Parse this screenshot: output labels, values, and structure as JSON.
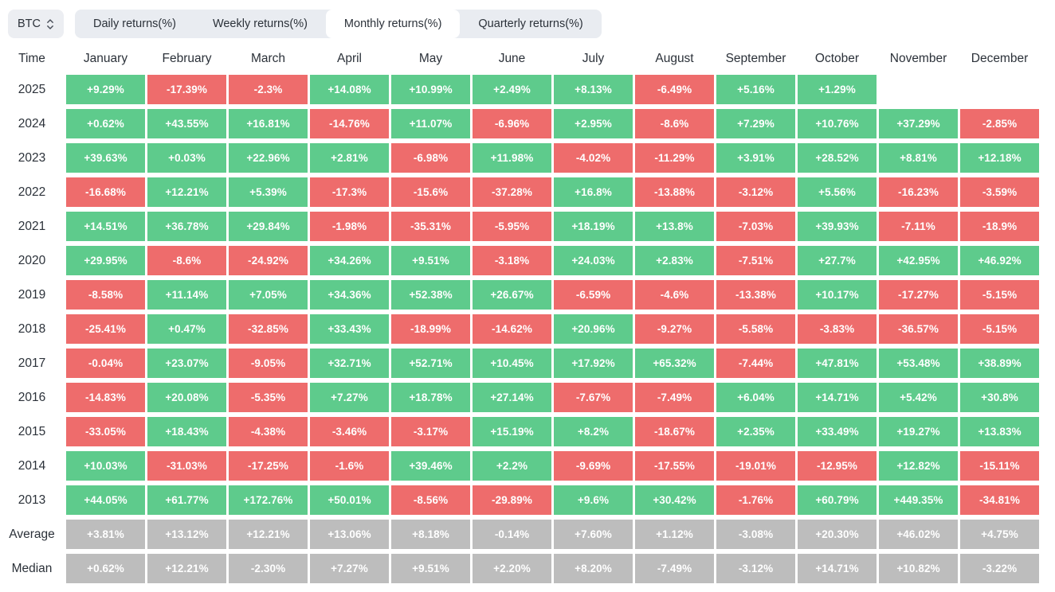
{
  "colors": {
    "positive": "#5ECB8C",
    "negative": "#EE6C6C",
    "summary": "#BDBDBD",
    "tab_bar_bg": "#E9ECF1",
    "tab_active_bg": "#FFFFFF",
    "select_bg": "#ECEEF2",
    "text_dark": "#2B3139",
    "cell_text": "#FFFFFF"
  },
  "controls": {
    "symbol_select": {
      "value": "BTC"
    },
    "tabs": [
      {
        "label": "Daily returns(%)",
        "active": false
      },
      {
        "label": "Weekly returns(%)",
        "active": false
      },
      {
        "label": "Monthly returns(%)",
        "active": true
      },
      {
        "label": "Quarterly returns(%)",
        "active": false
      }
    ]
  },
  "table": {
    "time_header": "Time",
    "months": [
      "January",
      "February",
      "March",
      "April",
      "May",
      "June",
      "July",
      "August",
      "September",
      "October",
      "November",
      "December"
    ],
    "rows": [
      {
        "label": "2025",
        "type": "year",
        "values": [
          "+9.29%",
          "-17.39%",
          "-2.3%",
          "+14.08%",
          "+10.99%",
          "+2.49%",
          "+8.13%",
          "-6.49%",
          "+5.16%",
          "+1.29%",
          null,
          null
        ]
      },
      {
        "label": "2024",
        "type": "year",
        "values": [
          "+0.62%",
          "+43.55%",
          "+16.81%",
          "-14.76%",
          "+11.07%",
          "-6.96%",
          "+2.95%",
          "-8.6%",
          "+7.29%",
          "+10.76%",
          "+37.29%",
          "-2.85%"
        ]
      },
      {
        "label": "2023",
        "type": "year",
        "values": [
          "+39.63%",
          "+0.03%",
          "+22.96%",
          "+2.81%",
          "-6.98%",
          "+11.98%",
          "-4.02%",
          "-11.29%",
          "+3.91%",
          "+28.52%",
          "+8.81%",
          "+12.18%"
        ]
      },
      {
        "label": "2022",
        "type": "year",
        "values": [
          "-16.68%",
          "+12.21%",
          "+5.39%",
          "-17.3%",
          "-15.6%",
          "-37.28%",
          "+16.8%",
          "-13.88%",
          "-3.12%",
          "+5.56%",
          "-16.23%",
          "-3.59%"
        ]
      },
      {
        "label": "2021",
        "type": "year",
        "values": [
          "+14.51%",
          "+36.78%",
          "+29.84%",
          "-1.98%",
          "-35.31%",
          "-5.95%",
          "+18.19%",
          "+13.8%",
          "-7.03%",
          "+39.93%",
          "-7.11%",
          "-18.9%"
        ]
      },
      {
        "label": "2020",
        "type": "year",
        "values": [
          "+29.95%",
          "-8.6%",
          "-24.92%",
          "+34.26%",
          "+9.51%",
          "-3.18%",
          "+24.03%",
          "+2.83%",
          "-7.51%",
          "+27.7%",
          "+42.95%",
          "+46.92%"
        ]
      },
      {
        "label": "2019",
        "type": "year",
        "values": [
          "-8.58%",
          "+11.14%",
          "+7.05%",
          "+34.36%",
          "+52.38%",
          "+26.67%",
          "-6.59%",
          "-4.6%",
          "-13.38%",
          "+10.17%",
          "-17.27%",
          "-5.15%"
        ]
      },
      {
        "label": "2018",
        "type": "year",
        "values": [
          "-25.41%",
          "+0.47%",
          "-32.85%",
          "+33.43%",
          "-18.99%",
          "-14.62%",
          "+20.96%",
          "-9.27%",
          "-5.58%",
          "-3.83%",
          "-36.57%",
          "-5.15%"
        ]
      },
      {
        "label": "2017",
        "type": "year",
        "values": [
          "-0.04%",
          "+23.07%",
          "-9.05%",
          "+32.71%",
          "+52.71%",
          "+10.45%",
          "+17.92%",
          "+65.32%",
          "-7.44%",
          "+47.81%",
          "+53.48%",
          "+38.89%"
        ]
      },
      {
        "label": "2016",
        "type": "year",
        "values": [
          "-14.83%",
          "+20.08%",
          "-5.35%",
          "+7.27%",
          "+18.78%",
          "+27.14%",
          "-7.67%",
          "-7.49%",
          "+6.04%",
          "+14.71%",
          "+5.42%",
          "+30.8%"
        ]
      },
      {
        "label": "2015",
        "type": "year",
        "values": [
          "-33.05%",
          "+18.43%",
          "-4.38%",
          "-3.46%",
          "-3.17%",
          "+15.19%",
          "+8.2%",
          "-18.67%",
          "+2.35%",
          "+33.49%",
          "+19.27%",
          "+13.83%"
        ]
      },
      {
        "label": "2014",
        "type": "year",
        "values": [
          "+10.03%",
          "-31.03%",
          "-17.25%",
          "-1.6%",
          "+39.46%",
          "+2.2%",
          "-9.69%",
          "-17.55%",
          "-19.01%",
          "-12.95%",
          "+12.82%",
          "-15.11%"
        ]
      },
      {
        "label": "2013",
        "type": "year",
        "values": [
          "+44.05%",
          "+61.77%",
          "+172.76%",
          "+50.01%",
          "-8.56%",
          "-29.89%",
          "+9.6%",
          "+30.42%",
          "-1.76%",
          "+60.79%",
          "+449.35%",
          "-34.81%"
        ]
      },
      {
        "label": "Average",
        "type": "summary",
        "values": [
          "+3.81%",
          "+13.12%",
          "+12.21%",
          "+13.06%",
          "+8.18%",
          "-0.14%",
          "+7.60%",
          "+1.12%",
          "-3.08%",
          "+20.30%",
          "+46.02%",
          "+4.75%"
        ]
      },
      {
        "label": "Median",
        "type": "summary",
        "values": [
          "+0.62%",
          "+12.21%",
          "-2.30%",
          "+7.27%",
          "+9.51%",
          "+2.20%",
          "+8.20%",
          "-7.49%",
          "-3.12%",
          "+14.71%",
          "+10.82%",
          "-3.22%"
        ]
      }
    ]
  }
}
